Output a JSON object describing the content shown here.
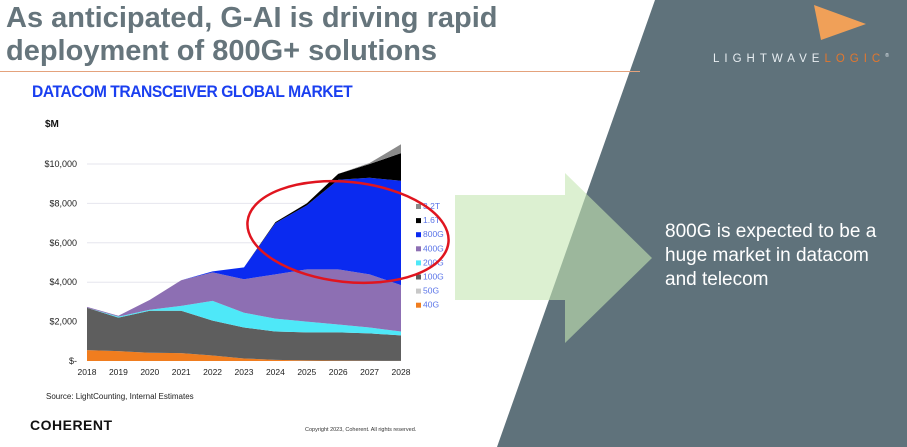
{
  "slide": {
    "title_line1": "As anticipated, G-AI is driving rapid",
    "title_line2": "deployment of 800G+ solutions",
    "callout": "800G is expected to be a huge market in datacom and telecom",
    "brand_left": "LIGHTWAVE",
    "brand_right": "LOGIC",
    "brand_suffix": "®",
    "company_logo": "COHERENT",
    "source": "Source: LightCounting, Internal Estimates",
    "copyright": "Copyright 2023, Coherent. All rights reserved.",
    "colors": {
      "panel": "#5f727b",
      "arrow": "#c7e3b4",
      "accent": "#e2772e",
      "highlight_ellipse": "#e0151f"
    }
  },
  "chart_data": {
    "type": "area",
    "stacked": true,
    "title": "DATACOM TRANSCEIVER GLOBAL MARKET",
    "ylabel": "$M",
    "ylim": [
      0,
      11000
    ],
    "yticks": [
      0,
      2000,
      4000,
      6000,
      8000,
      10000
    ],
    "ytick_labels": [
      "$-",
      "$2,000",
      "$4,000",
      "$6,000",
      "$8,000",
      "$10,000"
    ],
    "categories": [
      "2018",
      "2019",
      "2020",
      "2021",
      "2022",
      "2023",
      "2024",
      "2025",
      "2026",
      "2027",
      "2028"
    ],
    "legend_position": "right",
    "grid": true,
    "series": [
      {
        "name": "40G",
        "color": "#f07d1f",
        "values": [
          550,
          500,
          420,
          400,
          280,
          130,
          60,
          30,
          20,
          10,
          5
        ]
      },
      {
        "name": "50G",
        "color": "#c8c8c8",
        "values": [
          0,
          0,
          0,
          0,
          0,
          0,
          0,
          0,
          0,
          0,
          0
        ]
      },
      {
        "name": "100G",
        "color": "#5e5e5e",
        "values": [
          2150,
          1700,
          2130,
          2150,
          1770,
          1570,
          1440,
          1420,
          1430,
          1390,
          1295
        ]
      },
      {
        "name": "200G",
        "color": "#4ee8f8",
        "values": [
          0,
          50,
          50,
          250,
          1000,
          750,
          650,
          550,
          400,
          300,
          200
        ]
      },
      {
        "name": "400G",
        "color": "#8d6fb3",
        "values": [
          50,
          50,
          500,
          1300,
          1450,
          1700,
          2250,
          2650,
          2800,
          2700,
          2350
        ]
      },
      {
        "name": "800G",
        "color": "#0a2af0",
        "values": [
          0,
          0,
          0,
          0,
          50,
          600,
          2600,
          3250,
          4550,
          4900,
          5300
        ]
      },
      {
        "name": "1.6T",
        "color": "#000000",
        "values": [
          0,
          0,
          0,
          0,
          0,
          0,
          50,
          100,
          300,
          700,
          1400
        ]
      },
      {
        "name": "3.2T",
        "color": "#8a8a8a",
        "values": [
          0,
          0,
          0,
          0,
          0,
          0,
          0,
          0,
          0,
          50,
          450
        ]
      }
    ]
  }
}
